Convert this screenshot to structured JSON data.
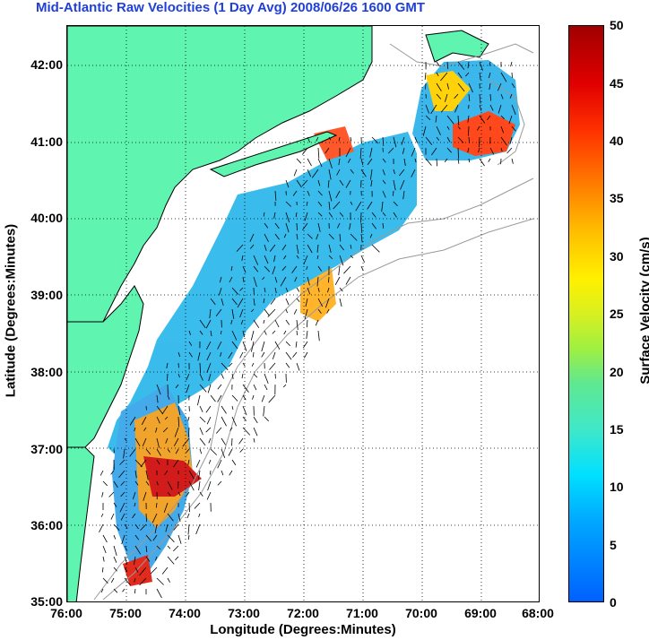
{
  "title": "Mid-Atlantic Raw Velocities (1 Day Avg) 2008/06/26 1600 GMT",
  "xlabel": "Longitude (Degrees:Minutes)",
  "ylabel": "Latitude (Degrees:Minutes)",
  "colorbar_label": "Surface Velocity (cm/s)",
  "x_ticks": [
    "76:00",
    "75:00",
    "74:00",
    "73:00",
    "72:00",
    "71:00",
    "70:00",
    "69:00",
    "68:00"
  ],
  "y_ticks": [
    "42:00",
    "41:00",
    "40:00",
    "39:00",
    "38:00",
    "37:00",
    "36:00",
    "35:00"
  ],
  "colorbar_ticks": [
    "50",
    "45",
    "40",
    "35",
    "30",
    "25",
    "20",
    "15",
    "10",
    "5",
    "0"
  ],
  "colors": {
    "land": "#5ff5b0",
    "title": "#1f3fd8"
  }
}
